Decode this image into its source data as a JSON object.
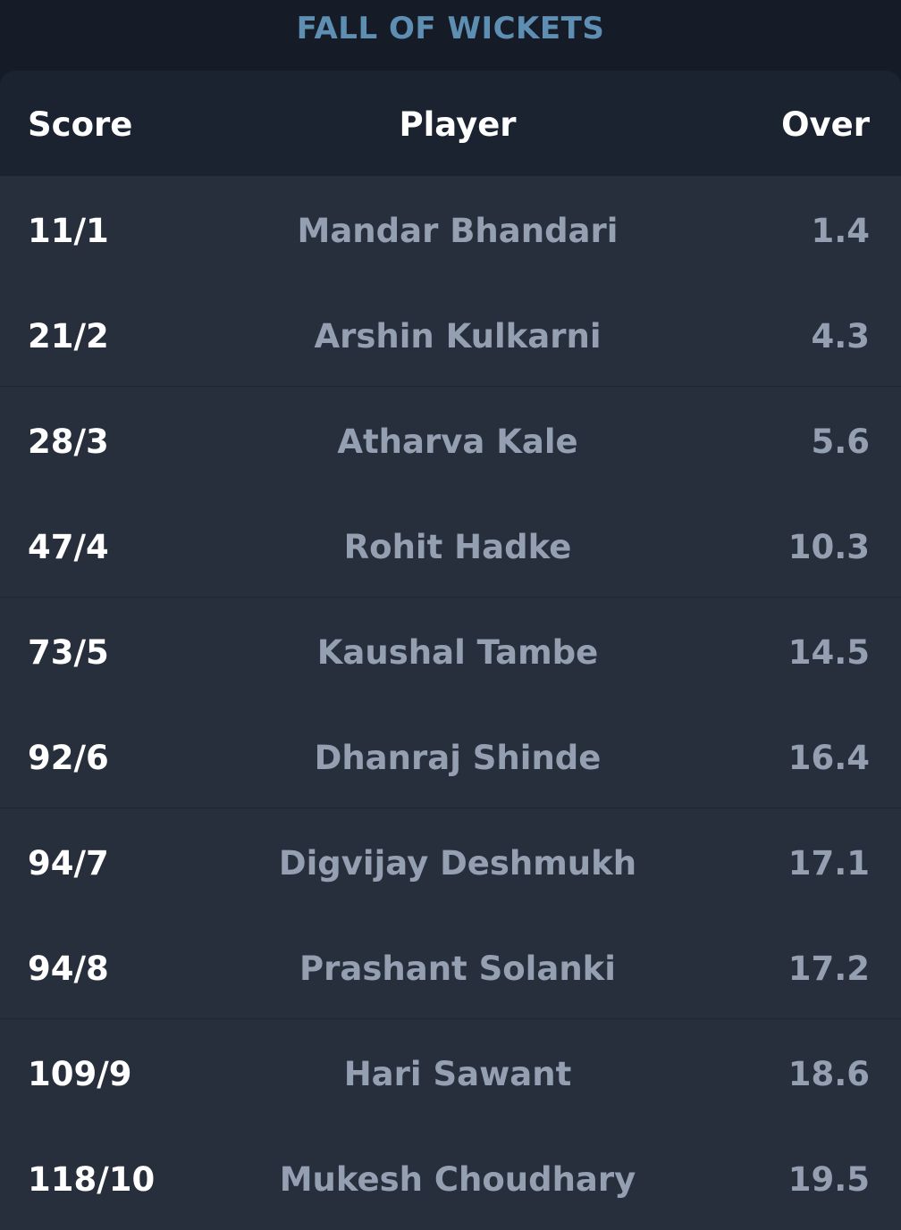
{
  "title": "FALL OF WICKETS",
  "table": {
    "headers": {
      "score": "Score",
      "player": "Player",
      "over": "Over"
    },
    "rows": [
      {
        "score": "11/1",
        "player": "Mandar Bhandari",
        "over": "1.4"
      },
      {
        "score": "21/2",
        "player": "Arshin Kulkarni",
        "over": "4.3"
      },
      {
        "score": "28/3",
        "player": "Atharva Kale",
        "over": "5.6"
      },
      {
        "score": "47/4",
        "player": "Rohit Hadke",
        "over": "10.3"
      },
      {
        "score": "73/5",
        "player": "Kaushal Tambe",
        "over": "14.5"
      },
      {
        "score": "92/6",
        "player": "Dhanraj Shinde",
        "over": "16.4"
      },
      {
        "score": "94/7",
        "player": "Digvijay Deshmukh",
        "over": "17.1"
      },
      {
        "score": "94/8",
        "player": "Prashant Solanki",
        "over": "17.2"
      },
      {
        "score": "109/9",
        "player": "Hari Sawant",
        "over": "18.6"
      },
      {
        "score": "118/10",
        "player": "Mukesh Choudhary",
        "over": "19.5"
      }
    ]
  },
  "colors": {
    "background": "#151c27",
    "card": "#272f3c",
    "header_row": "#1b2330",
    "title": "#5e8fb2",
    "score_text": "#ffffff",
    "muted_text": "#94a0b2"
  }
}
